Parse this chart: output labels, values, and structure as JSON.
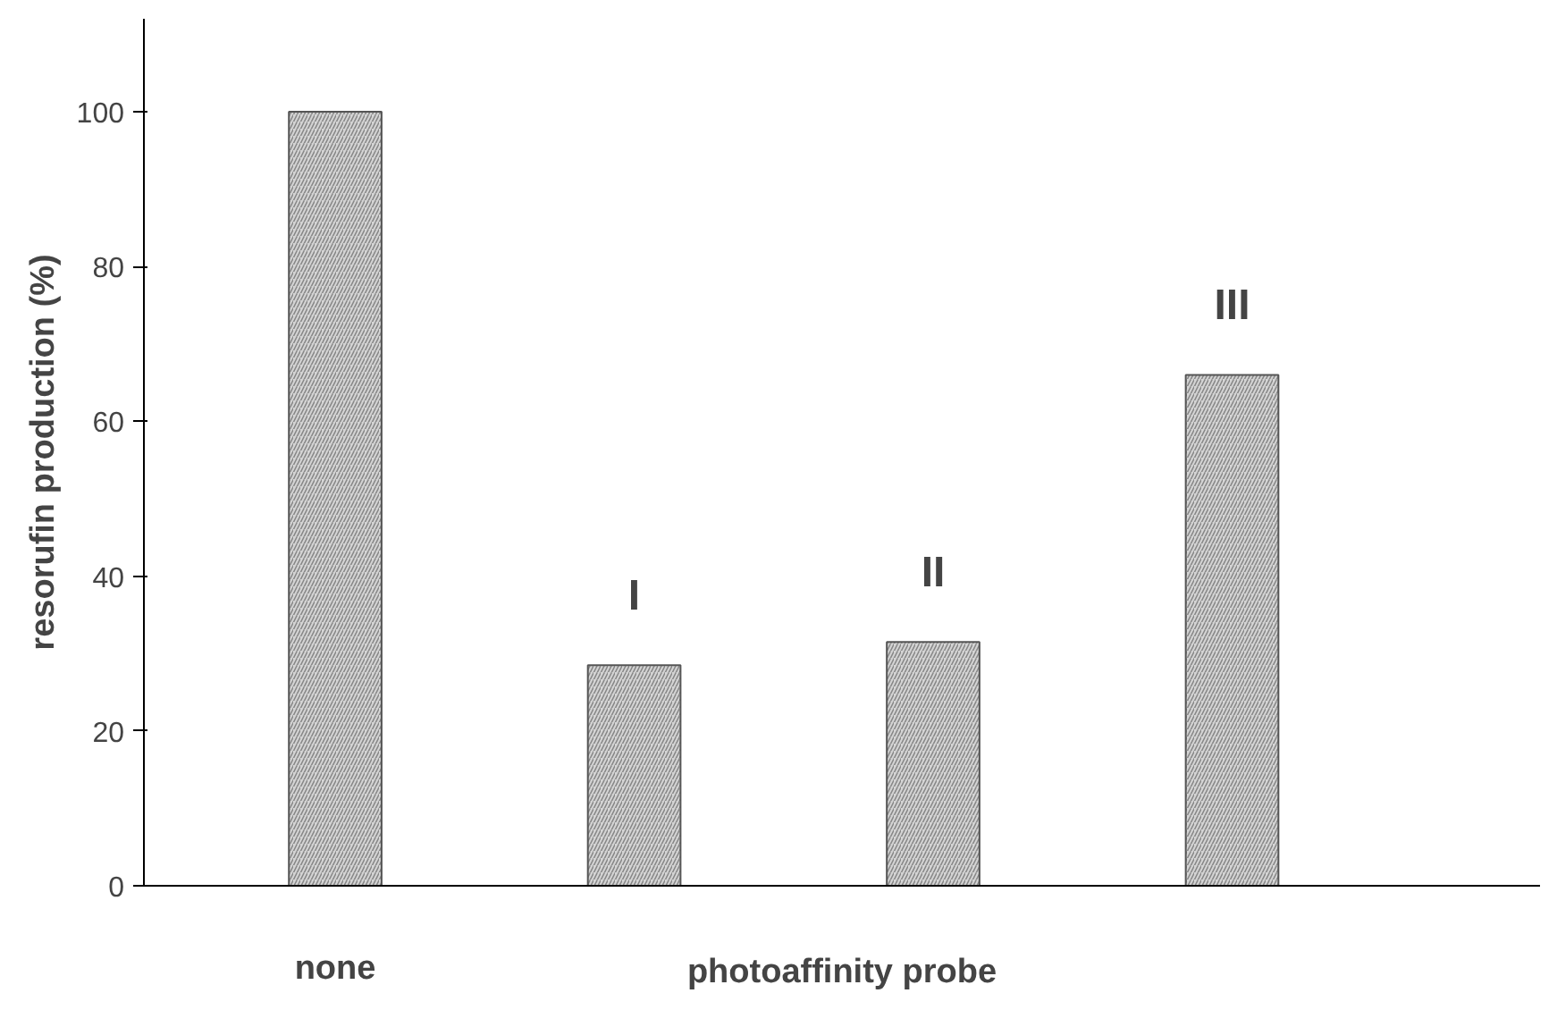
{
  "chart_data": {
    "type": "bar",
    "categories": [
      "none",
      null,
      null,
      null
    ],
    "values": [
      100,
      28.5,
      31.5,
      66
    ],
    "color": "#d4d4d4",
    "ylabel": "resorufin production (%)",
    "xlabel": "photoaffinity probe",
    "ylim": [
      0,
      112
    ],
    "yticks": [
      0,
      20,
      40,
      60,
      80,
      100
    ],
    "grid": false,
    "annotations": [
      "I",
      "II",
      "III"
    ]
  }
}
